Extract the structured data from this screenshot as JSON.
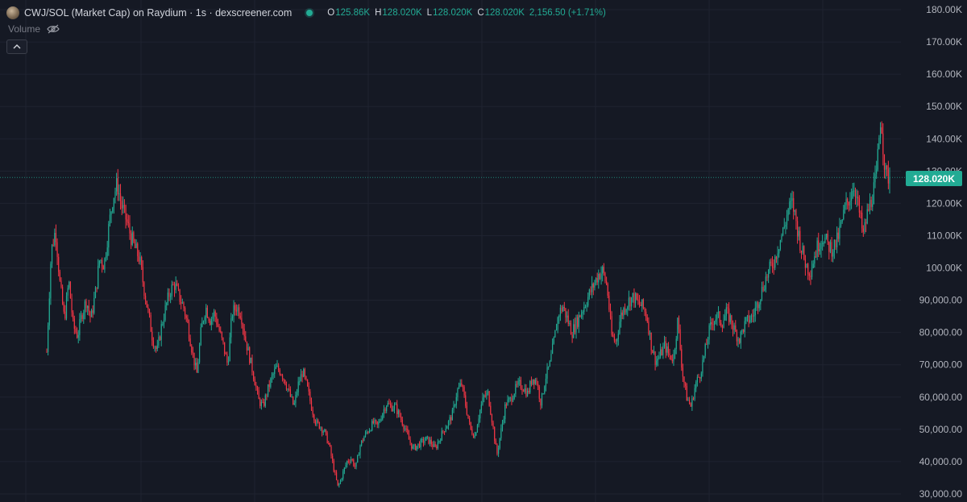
{
  "header": {
    "title": "CWJ/SOL (Market Cap) on Raydium · 1s · dexscreener.com",
    "ohlc": {
      "o_label": "O",
      "o_value": "125.86K",
      "h_label": "H",
      "h_value": "128.020K",
      "l_label": "L",
      "l_value": "128.020K",
      "c_label": "C",
      "c_value": "128.020K",
      "change": "2,156.50 (+1.71%)"
    },
    "volume_label": "Volume"
  },
  "icons": {
    "pair": "cwj-token-icon",
    "status": "live-status-dot",
    "volume_visibility": "eye-slash-icon",
    "collapse": "chevron-up-icon"
  },
  "colors": {
    "background": "#151924",
    "grid": "#1f2330",
    "up": "#22ab94",
    "down": "#f23645",
    "axis_text": "#b2b5be"
  },
  "last_price_tag": "128.020K",
  "chart_data": {
    "type": "candlestick",
    "ylim": [
      27500,
      183000
    ],
    "y_ticks": [
      {
        "value": 180000,
        "label": "180.00K"
      },
      {
        "value": 170000,
        "label": "170.00K"
      },
      {
        "value": 160000,
        "label": "160.00K"
      },
      {
        "value": 150000,
        "label": "150.00K"
      },
      {
        "value": 140000,
        "label": "140.00K"
      },
      {
        "value": 130000,
        "label": "130.00K"
      },
      {
        "value": 120000,
        "label": "120.00K"
      },
      {
        "value": 110000,
        "label": "110.00K"
      },
      {
        "value": 100000,
        "label": "100.00K"
      },
      {
        "value": 90000,
        "label": "90,000.00"
      },
      {
        "value": 80000,
        "label": "80,000.00"
      },
      {
        "value": 70000,
        "label": "70,000.00"
      },
      {
        "value": 60000,
        "label": "60,000.00"
      },
      {
        "value": 50000,
        "label": "50,000.00"
      },
      {
        "value": 40000,
        "label": "40,000.00"
      },
      {
        "value": 30000,
        "label": "30,000.00"
      }
    ],
    "last_price": 128020,
    "price_path": [
      [
        0,
        74000
      ],
      [
        1,
        105000
      ],
      [
        2,
        112000
      ],
      [
        3,
        95000
      ],
      [
        4,
        84000
      ],
      [
        5,
        96000
      ],
      [
        6,
        82000
      ],
      [
        7,
        79000
      ],
      [
        8,
        86000
      ],
      [
        9,
        90000
      ],
      [
        10,
        84000
      ],
      [
        11,
        92000
      ],
      [
        12,
        103000
      ],
      [
        13,
        101000
      ],
      [
        14,
        112000
      ],
      [
        15,
        122000
      ],
      [
        16,
        126000
      ],
      [
        17,
        119000
      ],
      [
        18,
        115000
      ],
      [
        19,
        110000
      ],
      [
        20,
        106000
      ],
      [
        21,
        103000
      ],
      [
        22,
        94000
      ],
      [
        23,
        86000
      ],
      [
        24,
        78000
      ],
      [
        25,
        74000
      ],
      [
        26,
        82000
      ],
      [
        27,
        88000
      ],
      [
        28,
        93000
      ],
      [
        29,
        95000
      ],
      [
        30,
        91000
      ],
      [
        31,
        88000
      ],
      [
        32,
        82000
      ],
      [
        33,
        74000
      ],
      [
        34,
        67000
      ],
      [
        35,
        81000
      ],
      [
        36,
        88000
      ],
      [
        37,
        84000
      ],
      [
        38,
        86000
      ],
      [
        39,
        81000
      ],
      [
        40,
        76000
      ],
      [
        41,
        70000
      ],
      [
        42,
        86000
      ],
      [
        43,
        88000
      ],
      [
        44,
        86000
      ],
      [
        45,
        78000
      ],
      [
        46,
        72000
      ],
      [
        47,
        66000
      ],
      [
        48,
        59000
      ],
      [
        49,
        57000
      ],
      [
        50,
        62000
      ],
      [
        51,
        66000
      ],
      [
        52,
        69000
      ],
      [
        53,
        68000
      ],
      [
        54,
        65000
      ],
      [
        55,
        61000
      ],
      [
        56,
        57000
      ],
      [
        57,
        64000
      ],
      [
        58,
        68000
      ],
      [
        59,
        63000
      ],
      [
        60,
        57000
      ],
      [
        61,
        52000
      ],
      [
        62,
        51000
      ],
      [
        63,
        49000
      ],
      [
        64,
        45000
      ],
      [
        65,
        38000
      ],
      [
        66,
        32000
      ],
      [
        67,
        36000
      ],
      [
        68,
        40000
      ],
      [
        69,
        41000
      ],
      [
        70,
        38000
      ],
      [
        71,
        45000
      ],
      [
        72,
        48000
      ],
      [
        73,
        50000
      ],
      [
        74,
        52000
      ],
      [
        75,
        51000
      ],
      [
        76,
        55000
      ],
      [
        77,
        58000
      ],
      [
        78,
        57000
      ],
      [
        79,
        57000
      ],
      [
        80,
        54000
      ],
      [
        81,
        51000
      ],
      [
        82,
        47000
      ],
      [
        83,
        44000
      ],
      [
        84,
        45000
      ],
      [
        85,
        46000
      ],
      [
        86,
        47000
      ],
      [
        87,
        46000
      ],
      [
        88,
        44000
      ],
      [
        89,
        47000
      ],
      [
        90,
        50000
      ],
      [
        91,
        52000
      ],
      [
        92,
        55000
      ],
      [
        93,
        62000
      ],
      [
        94,
        64000
      ],
      [
        95,
        57000
      ],
      [
        96,
        50000
      ],
      [
        97,
        48000
      ],
      [
        98,
        55000
      ],
      [
        99,
        60000
      ],
      [
        100,
        61000
      ],
      [
        101,
        52000
      ],
      [
        102,
        42000
      ],
      [
        103,
        50000
      ],
      [
        104,
        58000
      ],
      [
        105,
        59000
      ],
      [
        106,
        62000
      ],
      [
        107,
        64000
      ],
      [
        108,
        63000
      ],
      [
        109,
        61000
      ],
      [
        110,
        66000
      ],
      [
        111,
        65000
      ],
      [
        112,
        58000
      ],
      [
        113,
        66000
      ],
      [
        114,
        70000
      ],
      [
        115,
        78000
      ],
      [
        116,
        86000
      ],
      [
        117,
        88000
      ],
      [
        118,
        84000
      ],
      [
        119,
        80000
      ],
      [
        120,
        83000
      ],
      [
        121,
        86000
      ],
      [
        122,
        89000
      ],
      [
        123,
        92000
      ],
      [
        124,
        95000
      ],
      [
        125,
        98000
      ],
      [
        126,
        99000
      ],
      [
        127,
        94000
      ],
      [
        128,
        79000
      ],
      [
        129,
        77000
      ],
      [
        130,
        85000
      ],
      [
        131,
        88000
      ],
      [
        132,
        90000
      ],
      [
        133,
        91000
      ],
      [
        134,
        89000
      ],
      [
        135,
        88000
      ],
      [
        136,
        85000
      ],
      [
        137,
        76000
      ],
      [
        138,
        71000
      ],
      [
        139,
        73000
      ],
      [
        140,
        76000
      ],
      [
        141,
        73000
      ],
      [
        142,
        72000
      ],
      [
        143,
        84000
      ],
      [
        144,
        68000
      ],
      [
        145,
        60000
      ],
      [
        146,
        57000
      ],
      [
        147,
        64000
      ],
      [
        148,
        67000
      ],
      [
        149,
        73000
      ],
      [
        150,
        80000
      ],
      [
        151,
        84000
      ],
      [
        152,
        85000
      ],
      [
        153,
        83000
      ],
      [
        154,
        86000
      ],
      [
        155,
        84000
      ],
      [
        156,
        80000
      ],
      [
        157,
        78000
      ],
      [
        158,
        82000
      ],
      [
        159,
        84000
      ],
      [
        160,
        85000
      ],
      [
        161,
        89000
      ],
      [
        162,
        93000
      ],
      [
        163,
        97000
      ],
      [
        164,
        100000
      ],
      [
        165,
        103000
      ],
      [
        166,
        108000
      ],
      [
        167,
        112000
      ],
      [
        168,
        118000
      ],
      [
        169,
        120000
      ],
      [
        170,
        113000
      ],
      [
        171,
        106000
      ],
      [
        172,
        101000
      ],
      [
        173,
        99000
      ],
      [
        174,
        104000
      ],
      [
        175,
        108000
      ],
      [
        176,
        110000
      ],
      [
        177,
        107000
      ],
      [
        178,
        106000
      ],
      [
        179,
        108000
      ],
      [
        180,
        113000
      ],
      [
        181,
        119000
      ],
      [
        182,
        122000
      ],
      [
        183,
        126000
      ],
      [
        184,
        118000
      ],
      [
        185,
        110000
      ],
      [
        186,
        117000
      ],
      [
        187,
        122000
      ],
      [
        188,
        128000
      ],
      [
        189,
        148000
      ],
      [
        190,
        129000
      ],
      [
        191,
        128020
      ]
    ]
  }
}
